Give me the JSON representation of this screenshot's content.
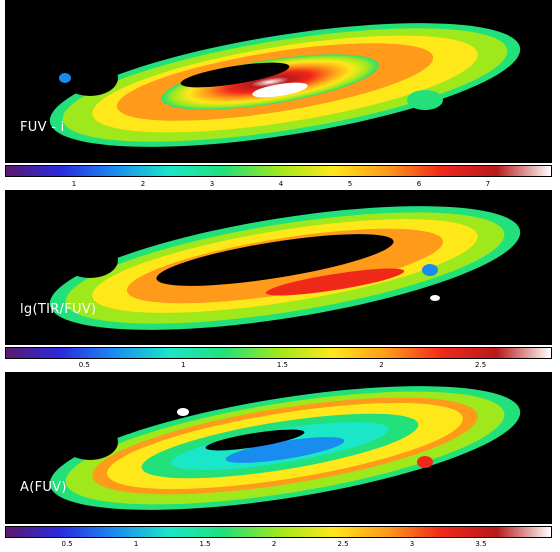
{
  "panels": [
    {
      "label": "FUV - i",
      "ticks": [
        "1",
        "2",
        "3",
        "4",
        "5",
        "6",
        "7"
      ],
      "tick_min": 0.0,
      "tick_max": 7.9
    },
    {
      "label": "lg(TIR/FUV)",
      "ticks": [
        "0.5",
        "1",
        "1.5",
        "2",
        "2.5"
      ],
      "tick_min": 0.1,
      "tick_max": 2.85
    },
    {
      "label": "A(FUV)",
      "ticks": [
        "0.5",
        "1",
        "1.5",
        "2",
        "2.5",
        "3",
        "3.5"
      ],
      "tick_min": 0.05,
      "tick_max": 4.0
    }
  ],
  "colormap": [
    "#5a1a6e",
    "#2a2adf",
    "#1a8cf0",
    "#1ae6c8",
    "#22e07a",
    "#9ee81c",
    "#ffe81a",
    "#ff9a1a",
    "#f0281a",
    "#b81a1a",
    "#ffffff"
  ]
}
